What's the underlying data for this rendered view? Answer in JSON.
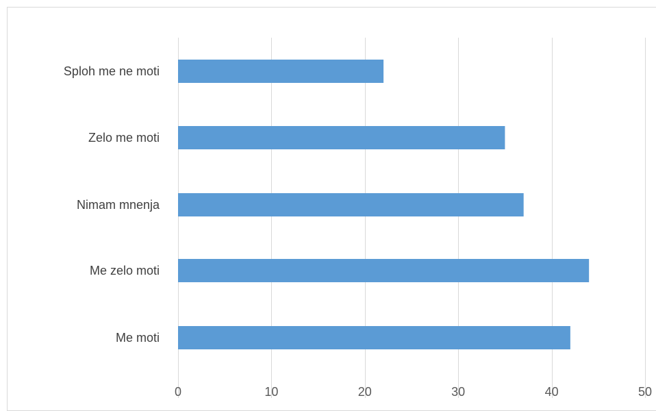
{
  "chart_data": {
    "type": "bar",
    "orientation": "horizontal",
    "categories": [
      "Sploh me ne moti",
      "Zelo me moti",
      "Nimam mnenja",
      "Me zelo moti",
      "Me moti"
    ],
    "values": [
      22,
      35,
      37,
      44,
      42
    ],
    "xlim": [
      0,
      50
    ],
    "xticks": [
      0,
      10,
      20,
      30,
      40,
      50
    ],
    "grid": "vertical",
    "bar_color": "#5b9bd5",
    "legend": "none",
    "title": "",
    "xlabel": "",
    "ylabel": ""
  }
}
